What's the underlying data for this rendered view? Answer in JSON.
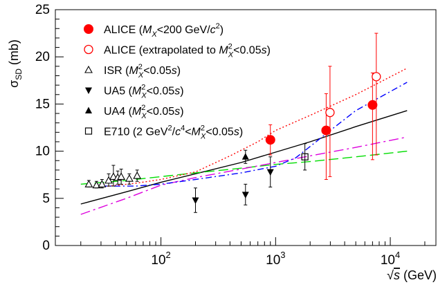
{
  "chart_data": {
    "type": "scatter",
    "xlabel": "√s (GeV)",
    "ylabel": "σSD (mb)",
    "xscale": "log",
    "xlim": [
      12,
      25000
    ],
    "ylim": [
      0,
      25
    ],
    "y_ticks": [
      "0",
      "5",
      "10",
      "15",
      "20",
      "25"
    ],
    "x_ticks": [
      {
        "base": "10",
        "exp": "2",
        "value": 100
      },
      {
        "base": "10",
        "exp": "3",
        "value": 1000
      },
      {
        "base": "10",
        "exp": "4",
        "value": 10000
      }
    ],
    "legend": [
      {
        "key": "alice",
        "marker": "filled-circle",
        "color": "#ff0000",
        "label": "ALICE (MX<200 GeV/c2)",
        "rich": [
          {
            "t": "ALICE ("
          },
          {
            "t": "M",
            "i": 1
          },
          {
            "t": "X",
            "sub": 1,
            "i": 1
          },
          {
            "t": "<200 GeV/"
          },
          {
            "t": "c",
            "i": 1
          },
          {
            "t": "2",
            "sup": 1
          },
          {
            "t": ")"
          }
        ]
      },
      {
        "key": "alice_extrap",
        "marker": "open-circle",
        "color": "#ff0000",
        "label": "ALICE (extrapolated to MX2<0.05s)",
        "rich": [
          {
            "t": "ALICE (extrapolated to "
          },
          {
            "t": "M",
            "i": 1
          },
          {
            "t": "2",
            "sup": 1
          },
          {
            "t": "X",
            "sub": 1,
            "i": 1
          },
          {
            "t": "<0.05"
          },
          {
            "t": "s",
            "i": 1
          },
          {
            "t": ")"
          }
        ]
      },
      {
        "key": "isr",
        "marker": "open-triangle-up",
        "color": "#000000",
        "label": "ISR  (MX2<0.05s)",
        "rich": [
          {
            "t": "ISR  ("
          },
          {
            "t": "M",
            "i": 1
          },
          {
            "t": "2",
            "sup": 1
          },
          {
            "t": "X",
            "sub": 1,
            "i": 1
          },
          {
            "t": "<0.05"
          },
          {
            "t": "s",
            "i": 1
          },
          {
            "t": ")"
          }
        ]
      },
      {
        "key": "ua5",
        "marker": "filled-triangle-down",
        "color": "#000000",
        "label": "UA5  (MX2<0.05s)",
        "rich": [
          {
            "t": "UA5  ("
          },
          {
            "t": "M",
            "i": 1
          },
          {
            "t": "2",
            "sup": 1
          },
          {
            "t": "X",
            "sub": 1,
            "i": 1
          },
          {
            "t": "<0.05"
          },
          {
            "t": "s",
            "i": 1
          },
          {
            "t": ")"
          }
        ]
      },
      {
        "key": "ua4",
        "marker": "filled-triangle-up",
        "color": "#000000",
        "label": "UA4  (MX2<0.05s)",
        "rich": [
          {
            "t": "UA4  ("
          },
          {
            "t": "M",
            "i": 1
          },
          {
            "t": "2",
            "sup": 1
          },
          {
            "t": "X",
            "sub": 1,
            "i": 1
          },
          {
            "t": "<0.05"
          },
          {
            "t": "s",
            "i": 1
          },
          {
            "t": ")"
          }
        ]
      },
      {
        "key": "e710",
        "marker": "open-square",
        "color": "#000000",
        "label": "E710 (2 GeV2/c4<MX2<0.05s)",
        "rich": [
          {
            "t": "E710 (2 GeV"
          },
          {
            "t": "2",
            "sup": 1
          },
          {
            "t": "/"
          },
          {
            "t": "c",
            "i": 1
          },
          {
            "t": "4",
            "sup": 1
          },
          {
            "t": "<"
          },
          {
            "t": "M",
            "i": 1
          },
          {
            "t": "2",
            "sup": 1
          },
          {
            "t": "X",
            "sub": 1,
            "i": 1
          },
          {
            "t": "<0.05"
          },
          {
            "t": "s",
            "i": 1
          },
          {
            "t": ")"
          }
        ]
      }
    ],
    "series": [
      {
        "key": "alice",
        "marker": "filled-circle",
        "color": "#ff0000",
        "points": [
          {
            "x": 900,
            "y": 11.2,
            "lo": 9.6,
            "hi": 12.8
          },
          {
            "x": 2760,
            "y": 12.2,
            "lo": 7.0,
            "hi": 16.1
          },
          {
            "x": 7000,
            "y": 14.9,
            "lo": 9.1,
            "hi": 18.3
          }
        ]
      },
      {
        "key": "alice_extrap",
        "marker": "open-circle",
        "color": "#ff0000",
        "points": [
          {
            "x": 2980,
            "y": 14.1,
            "lo": 7.3,
            "hi": 19.0
          },
          {
            "x": 7550,
            "y": 17.9,
            "lo": 9.6,
            "hi": 22.5
          }
        ]
      },
      {
        "key": "isr",
        "marker": "open-triangle-up",
        "color": "#000000",
        "points": [
          {
            "x": 23.5,
            "y": 6.5,
            "lo": 6.2,
            "hi": 6.9
          },
          {
            "x": 27.4,
            "y": 6.4,
            "lo": 6.1,
            "hi": 6.8
          },
          {
            "x": 30.6,
            "y": 6.5,
            "lo": 6.1,
            "hi": 7.0
          },
          {
            "x": 35,
            "y": 6.9,
            "lo": 6.3,
            "hi": 7.6
          },
          {
            "x": 38.5,
            "y": 7.3,
            "lo": 6.3,
            "hi": 8.5
          },
          {
            "x": 42,
            "y": 7.2,
            "lo": 6.5,
            "hi": 7.9
          },
          {
            "x": 45,
            "y": 7.3,
            "lo": 6.5,
            "hi": 8.1
          },
          {
            "x": 53,
            "y": 7.1,
            "lo": 6.5,
            "hi": 7.6
          },
          {
            "x": 62,
            "y": 7.4,
            "lo": 6.8,
            "hi": 8.0
          }
        ]
      },
      {
        "key": "ua5",
        "marker": "filled-triangle-down",
        "color": "#000000",
        "points": [
          {
            "x": 200,
            "y": 4.8,
            "lo": 3.5,
            "hi": 6.1
          },
          {
            "x": 546,
            "y": 5.4,
            "lo": 4.3,
            "hi": 6.5
          },
          {
            "x": 900,
            "y": 7.8,
            "lo": 6.2,
            "hi": 9.4
          }
        ]
      },
      {
        "key": "ua4",
        "marker": "filled-triangle-up",
        "color": "#000000",
        "points": [
          {
            "x": 546,
            "y": 9.4,
            "lo": 8.7,
            "hi": 10.1
          }
        ]
      },
      {
        "key": "e710",
        "marker": "open-square",
        "color": "#000000",
        "points": [
          {
            "x": 1800,
            "y": 9.4,
            "lo": 8.0,
            "hi": 10.8
          }
        ]
      }
    ],
    "curves": [
      {
        "key": "black-solid",
        "color": "#000000",
        "dash": "",
        "points": [
          [
            20,
            4.4
          ],
          [
            50,
            5.7
          ],
          [
            100,
            6.7
          ],
          [
            200,
            7.6
          ],
          [
            500,
            8.8
          ],
          [
            1000,
            9.9
          ],
          [
            2000,
            11.0
          ],
          [
            5000,
            12.6
          ],
          [
            14000,
            14.3
          ]
        ]
      },
      {
        "key": "green-dashed",
        "color": "#00dd00",
        "dash": "14 6",
        "points": [
          [
            20,
            6.5
          ],
          [
            50,
            6.9
          ],
          [
            100,
            7.3
          ],
          [
            200,
            7.7
          ],
          [
            500,
            8.2
          ],
          [
            1000,
            8.6
          ],
          [
            2000,
            8.9
          ],
          [
            5000,
            9.4
          ],
          [
            14000,
            10.0
          ]
        ]
      },
      {
        "key": "magenta-dashdot",
        "color": "#dd00dd",
        "dash": "14 5 3 5",
        "points": [
          [
            20,
            3.3
          ],
          [
            50,
            5.0
          ],
          [
            100,
            6.4
          ],
          [
            200,
            7.2
          ],
          [
            500,
            8.1
          ],
          [
            1000,
            8.8
          ],
          [
            2000,
            9.5
          ],
          [
            5000,
            10.4
          ],
          [
            14000,
            11.5
          ]
        ]
      },
      {
        "key": "red-dotted",
        "color": "#ff0000",
        "dash": "2 3",
        "points": [
          [
            30,
            6.2
          ],
          [
            60,
            6.6
          ],
          [
            100,
            7.0
          ],
          [
            200,
            7.8
          ],
          [
            400,
            9.5
          ],
          [
            700,
            11.0
          ],
          [
            1000,
            12.2
          ],
          [
            2000,
            13.8
          ],
          [
            5000,
            16.0
          ],
          [
            14000,
            18.8
          ]
        ]
      },
      {
        "key": "blue-dashdot",
        "color": "#0000ff",
        "dash": "9 4 2 4",
        "points": [
          [
            30,
            6.3
          ],
          [
            60,
            6.3
          ],
          [
            100,
            6.5
          ],
          [
            200,
            7.0
          ],
          [
            500,
            7.7
          ],
          [
            1000,
            8.4
          ],
          [
            1500,
            9.3
          ],
          [
            2000,
            10.5
          ],
          [
            3000,
            12.2
          ],
          [
            5000,
            14.3
          ],
          [
            14000,
            17.3
          ]
        ]
      }
    ]
  }
}
